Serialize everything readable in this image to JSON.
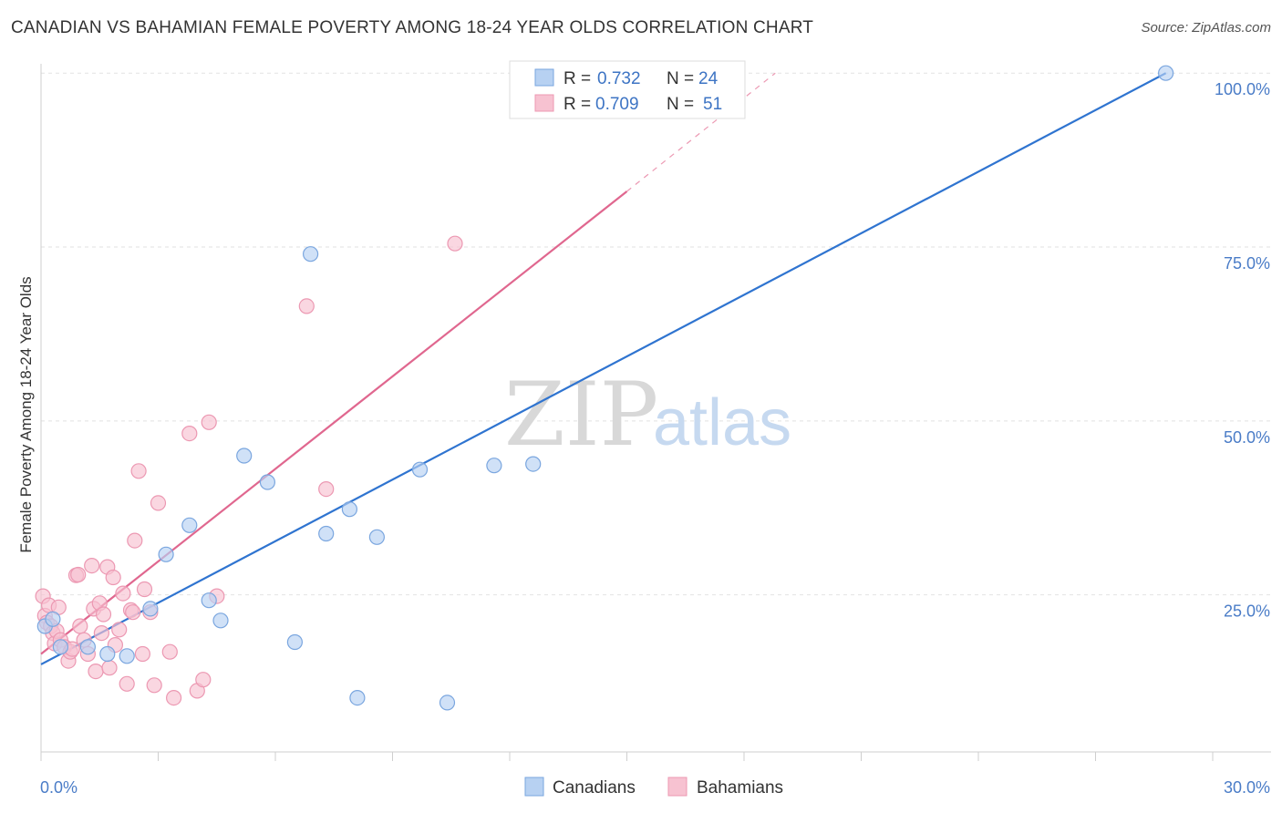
{
  "header": {
    "title": "CANADIAN VS BAHAMIAN FEMALE POVERTY AMONG 18-24 YEAR OLDS CORRELATION CHART",
    "source": "Source: ZipAtlas.com"
  },
  "watermark": {
    "zip": "ZIP",
    "atlas": "atlas"
  },
  "colors": {
    "canadians_fill": "#b7d1f2",
    "canadians_stroke": "#7aa6df",
    "canadians_line": "#2f74d0",
    "bahamians_fill": "#f7c2d1",
    "bahamians_stroke": "#ec98b2",
    "bahamians_line": "#e0678f",
    "grid": "#e2e2e2",
    "tick_label": "#4a7cc7"
  },
  "legend": {
    "r_label": "R =",
    "n_label": "N =",
    "canadians": {
      "r": "0.732",
      "n": "24"
    },
    "bahamians": {
      "r": "0.709",
      "n": "51"
    }
  },
  "chart_data": {
    "type": "scatter",
    "title": "CANADIAN VS BAHAMIAN FEMALE POVERTY AMONG 18-24 YEAR OLDS CORRELATION CHART",
    "xlabel": "",
    "ylabel": "Female Poverty Among 18-24 Year Olds",
    "xlim": [
      0,
      30
    ],
    "ylim": [
      0,
      102
    ],
    "x_tick_labels": [
      "0.0%",
      "30.0%"
    ],
    "y_ticks": [
      25,
      50,
      75,
      100
    ],
    "y_tick_labels": [
      "25.0%",
      "50.0%",
      "75.0%",
      "100.0%"
    ],
    "grid": true,
    "legend_position": "bottom-center",
    "series": [
      {
        "name": "Canadians",
        "points": [
          [
            0.1,
            20.5
          ],
          [
            0.3,
            21.5
          ],
          [
            0.5,
            17.5
          ],
          [
            1.2,
            17.5
          ],
          [
            1.7,
            16.5
          ],
          [
            2.2,
            16.2
          ],
          [
            2.8,
            23.0
          ],
          [
            3.2,
            30.8
          ],
          [
            3.8,
            35.0
          ],
          [
            4.3,
            24.2
          ],
          [
            4.6,
            21.3
          ],
          [
            5.2,
            45.0
          ],
          [
            5.8,
            41.2
          ],
          [
            6.5,
            18.2
          ],
          [
            6.9,
            74.0
          ],
          [
            7.3,
            33.8
          ],
          [
            7.9,
            37.3
          ],
          [
            8.1,
            10.2
          ],
          [
            8.6,
            33.3
          ],
          [
            9.7,
            43.0
          ],
          [
            10.4,
            9.5
          ],
          [
            11.6,
            43.6
          ],
          [
            12.6,
            43.8
          ],
          [
            28.8,
            100.0
          ]
        ],
        "trend": {
          "x": [
            0,
            28.8
          ],
          "y": [
            15.0,
            100.0
          ]
        }
      },
      {
        "name": "Bahamians",
        "points": [
          [
            0.05,
            24.8
          ],
          [
            0.1,
            22.0
          ],
          [
            0.15,
            21.0
          ],
          [
            0.2,
            23.5
          ],
          [
            0.25,
            20.5
          ],
          [
            0.3,
            19.5
          ],
          [
            0.35,
            18.0
          ],
          [
            0.4,
            19.8
          ],
          [
            0.5,
            18.5
          ],
          [
            0.6,
            17.5
          ],
          [
            0.7,
            15.5
          ],
          [
            0.75,
            16.8
          ],
          [
            0.8,
            17.2
          ],
          [
            0.9,
            27.8
          ],
          [
            0.95,
            27.9
          ],
          [
            1.0,
            20.5
          ],
          [
            1.1,
            18.5
          ],
          [
            1.2,
            16.5
          ],
          [
            1.3,
            29.2
          ],
          [
            1.35,
            23.0
          ],
          [
            1.4,
            14.0
          ],
          [
            1.5,
            23.8
          ],
          [
            1.55,
            19.5
          ],
          [
            1.6,
            22.2
          ],
          [
            1.7,
            29.0
          ],
          [
            1.75,
            14.5
          ],
          [
            1.85,
            27.5
          ],
          [
            1.9,
            17.8
          ],
          [
            2.0,
            20.0
          ],
          [
            2.1,
            25.2
          ],
          [
            2.2,
            12.2
          ],
          [
            2.3,
            22.8
          ],
          [
            2.35,
            22.5
          ],
          [
            2.4,
            32.8
          ],
          [
            2.5,
            42.8
          ],
          [
            2.6,
            16.5
          ],
          [
            2.65,
            25.8
          ],
          [
            2.8,
            22.5
          ],
          [
            2.9,
            12.0
          ],
          [
            3.0,
            38.2
          ],
          [
            3.3,
            16.8
          ],
          [
            3.4,
            10.2
          ],
          [
            3.8,
            48.2
          ],
          [
            4.0,
            11.2
          ],
          [
            4.15,
            12.8
          ],
          [
            4.3,
            49.8
          ],
          [
            4.5,
            24.8
          ],
          [
            6.8,
            66.5
          ],
          [
            7.3,
            40.2
          ],
          [
            10.6,
            75.5
          ],
          [
            0.45,
            23.2
          ]
        ],
        "trend": {
          "x": [
            0,
            15.0
          ],
          "y": [
            16.5,
            83.0
          ]
        },
        "trend_extension": {
          "x": [
            15.0,
            18.8
          ],
          "y": [
            83.0,
            100.0
          ]
        }
      }
    ]
  },
  "bottom_legend": {
    "canadians": "Canadians",
    "bahamians": "Bahamians"
  }
}
